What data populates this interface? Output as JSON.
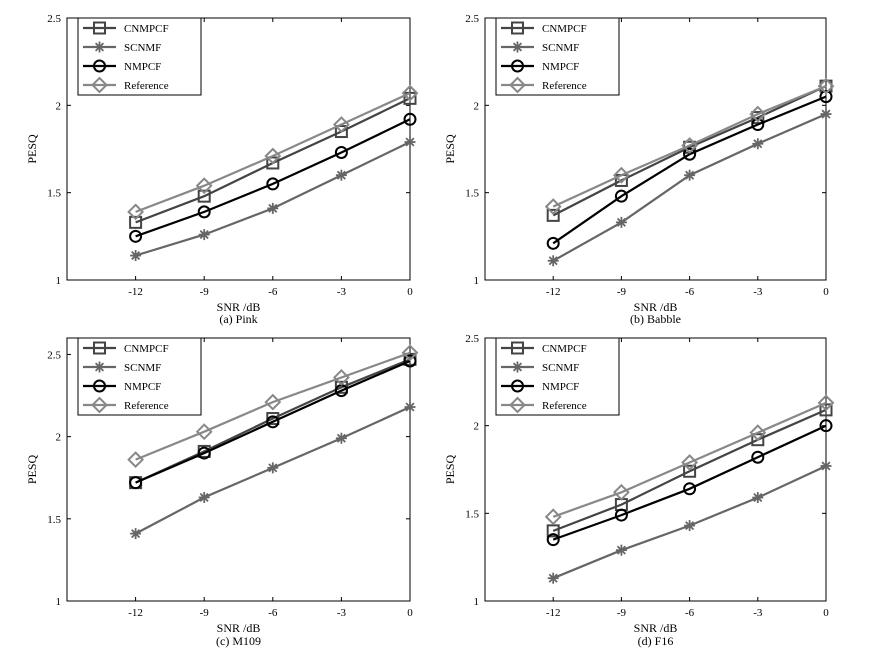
{
  "chart_data": [
    {
      "type": "line",
      "caption": "(a) Pink",
      "xlabel": "SNR /dB",
      "ylabel": "PESQ",
      "x": [
        -12,
        -9,
        -6,
        -3,
        0
      ],
      "xlim": [
        -15,
        0
      ],
      "ylim": [
        1,
        2.5
      ],
      "xticks": [
        "-12",
        "-9",
        "-6",
        "-3",
        "0"
      ],
      "yticks": [
        "1",
        "1.5",
        "2",
        "2.5"
      ],
      "legend_position": "top-left",
      "series": [
        {
          "name": "CNMPCF",
          "marker": "square",
          "color": "#444444",
          "values": [
            1.33,
            1.48,
            1.67,
            1.85,
            2.04
          ]
        },
        {
          "name": "SCNMF",
          "marker": "asterisk",
          "color": "#666666",
          "values": [
            1.14,
            1.26,
            1.41,
            1.6,
            1.79
          ]
        },
        {
          "name": "NMPCF",
          "marker": "circle",
          "color": "#000000",
          "values": [
            1.25,
            1.39,
            1.55,
            1.73,
            1.92
          ]
        },
        {
          "name": "Reference",
          "marker": "diamond",
          "color": "#888888",
          "values": [
            1.39,
            1.54,
            1.71,
            1.89,
            2.07
          ]
        }
      ]
    },
    {
      "type": "line",
      "caption": "(b) Babble",
      "xlabel": "SNR /dB",
      "ylabel": "PESQ",
      "x": [
        -12,
        -9,
        -6,
        -3,
        0
      ],
      "xlim": [
        -15,
        0
      ],
      "ylim": [
        1,
        2.5
      ],
      "xticks": [
        "-12",
        "-9",
        "-6",
        "-3",
        "0"
      ],
      "yticks": [
        "1",
        "1.5",
        "2",
        "2.5"
      ],
      "legend_position": "top-left",
      "series": [
        {
          "name": "CNMPCF",
          "marker": "square",
          "color": "#444444",
          "values": [
            1.37,
            1.57,
            1.76,
            1.93,
            2.11
          ]
        },
        {
          "name": "SCNMF",
          "marker": "asterisk",
          "color": "#666666",
          "values": [
            1.11,
            1.33,
            1.6,
            1.78,
            1.95
          ]
        },
        {
          "name": "NMPCF",
          "marker": "circle",
          "color": "#000000",
          "values": [
            1.21,
            1.48,
            1.72,
            1.89,
            2.05
          ]
        },
        {
          "name": "Reference",
          "marker": "diamond",
          "color": "#888888",
          "values": [
            1.42,
            1.6,
            1.77,
            1.95,
            2.11
          ]
        }
      ]
    },
    {
      "type": "line",
      "caption": "(c) M109",
      "xlabel": "SNR /dB",
      "ylabel": "PESQ",
      "x": [
        -12,
        -9,
        -6,
        -3,
        0
      ],
      "xlim": [
        -15,
        0
      ],
      "ylim": [
        1,
        2.6
      ],
      "xticks": [
        "-12",
        "-9",
        "-6",
        "-3",
        "0"
      ],
      "yticks": [
        "1",
        "1.5",
        "2",
        "2.5"
      ],
      "legend_position": "top-left",
      "series": [
        {
          "name": "CNMPCF",
          "marker": "square",
          "color": "#444444",
          "values": [
            1.72,
            1.91,
            2.11,
            2.3,
            2.47
          ]
        },
        {
          "name": "SCNMF",
          "marker": "asterisk",
          "color": "#666666",
          "values": [
            1.41,
            1.63,
            1.81,
            1.99,
            2.18
          ]
        },
        {
          "name": "NMPCF",
          "marker": "circle",
          "color": "#000000",
          "values": [
            1.72,
            1.9,
            2.09,
            2.28,
            2.46
          ]
        },
        {
          "name": "Reference",
          "marker": "diamond",
          "color": "#888888",
          "values": [
            1.86,
            2.03,
            2.21,
            2.36,
            2.51
          ]
        }
      ]
    },
    {
      "type": "line",
      "caption": "(d) F16",
      "xlabel": "SNR /dB",
      "ylabel": "PESQ",
      "x": [
        -12,
        -9,
        -6,
        -3,
        0
      ],
      "xlim": [
        -15,
        0
      ],
      "ylim": [
        1,
        2.5
      ],
      "xticks": [
        "-12",
        "-9",
        "-6",
        "-3",
        "0"
      ],
      "yticks": [
        "1",
        "1.5",
        "2",
        "2.5"
      ],
      "legend_position": "top-left",
      "series": [
        {
          "name": "CNMPCF",
          "marker": "square",
          "color": "#444444",
          "values": [
            1.4,
            1.55,
            1.74,
            1.92,
            2.09
          ]
        },
        {
          "name": "SCNMF",
          "marker": "asterisk",
          "color": "#666666",
          "values": [
            1.13,
            1.29,
            1.43,
            1.59,
            1.77
          ]
        },
        {
          "name": "NMPCF",
          "marker": "circle",
          "color": "#000000",
          "values": [
            1.35,
            1.49,
            1.64,
            1.82,
            2.0
          ]
        },
        {
          "name": "Reference",
          "marker": "diamond",
          "color": "#888888",
          "values": [
            1.48,
            1.62,
            1.79,
            1.96,
            2.13
          ]
        }
      ]
    }
  ]
}
